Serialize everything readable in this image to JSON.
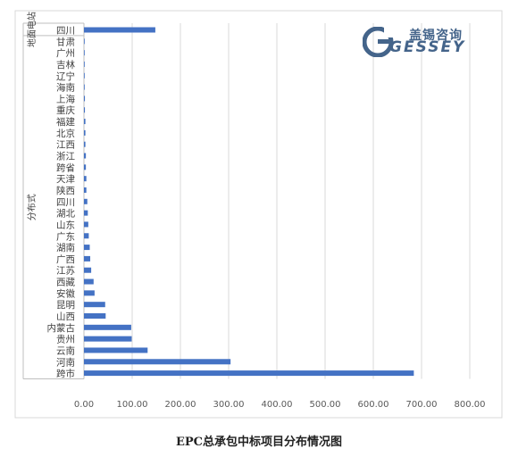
{
  "chart_data": {
    "type": "bar",
    "orientation": "horizontal",
    "title": "EPC总承包中标项目分布情况图",
    "xlim": [
      0,
      800
    ],
    "xticks": [
      "0.00",
      "100.00",
      "200.00",
      "300.00",
      "400.00",
      "500.00",
      "600.00",
      "700.00",
      "800.00"
    ],
    "grid": true,
    "groups": [
      {
        "label": "地面电站",
        "categories": [
          "四川"
        ]
      },
      {
        "label": "分布式",
        "categories": [
          "甘肃",
          "广州",
          "吉林",
          "辽宁",
          "海南",
          "上海",
          "重庆",
          "福建",
          "北京",
          "江西",
          "浙江",
          "跨省",
          "天津",
          "陕西",
          "四川",
          "湖北",
          "山东",
          "广东",
          "湖南",
          "广西",
          "江苏",
          "西藏",
          "安徽",
          "昆明",
          "山西",
          "内蒙古",
          "贵州",
          "云南",
          "河南",
          "跨市"
        ]
      }
    ],
    "categories": [
      "四川",
      "甘肃",
      "广州",
      "吉林",
      "辽宁",
      "海南",
      "上海",
      "重庆",
      "福建",
      "北京",
      "江西",
      "浙江",
      "跨省",
      "天津",
      "陕西",
      "四川",
      "湖北",
      "山东",
      "广东",
      "湖南",
      "广西",
      "江苏",
      "西藏",
      "安徽",
      "昆明",
      "山西",
      "内蒙古",
      "贵州",
      "云南",
      "河南",
      "跨市"
    ],
    "values": [
      148,
      1,
      1,
      1,
      1,
      1,
      2,
      2,
      3,
      3,
      3,
      4,
      4,
      5,
      5,
      7,
      8,
      9,
      10,
      12,
      13,
      15,
      20,
      22,
      44,
      45,
      98,
      99,
      132,
      304,
      684
    ],
    "bar_color": "#4472c4"
  },
  "logo": {
    "text": "盖锡咨询",
    "word": "GESSEY",
    "icon": "gessey-logo-mark"
  }
}
